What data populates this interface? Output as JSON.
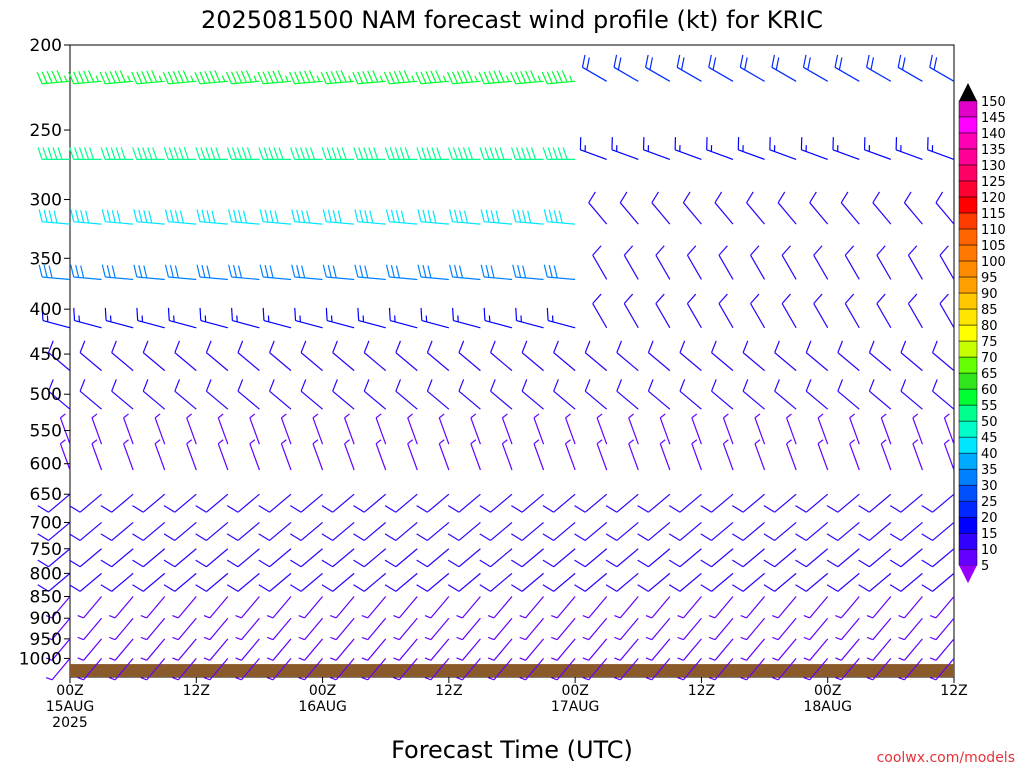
{
  "chart_data": {
    "type": "wind_barb_time_height",
    "title": "2025081500 NAM forecast wind profile (kt) for KRIC",
    "xlabel": "Forecast Time (UTC)",
    "ylabel": "",
    "credit": "coolwx.com/models",
    "units": "kt",
    "y_axis": {
      "reversed": true,
      "ylim": [
        200,
        1050
      ],
      "ticks": [
        200,
        250,
        300,
        350,
        400,
        450,
        500,
        550,
        600,
        650,
        700,
        750,
        800,
        850,
        900,
        950,
        1000
      ]
    },
    "x_axis": {
      "xlim_hours": [
        0,
        84
      ],
      "ticks": [
        {
          "hour": 0,
          "line1": "00Z",
          "line2": "15AUG",
          "line3": "2025"
        },
        {
          "hour": 12,
          "line1": "12Z",
          "line2": "",
          "line3": ""
        },
        {
          "hour": 24,
          "line1": "00Z",
          "line2": "16AUG",
          "line3": ""
        },
        {
          "hour": 36,
          "line1": "12Z",
          "line2": "",
          "line3": ""
        },
        {
          "hour": 48,
          "line1": "00Z",
          "line2": "17AUG",
          "line3": ""
        },
        {
          "hour": 60,
          "line1": "12Z",
          "line2": "",
          "line3": ""
        },
        {
          "hour": 72,
          "line1": "00Z",
          "line2": "18AUG",
          "line3": ""
        },
        {
          "hour": 84,
          "line1": "12Z",
          "line2": "",
          "line3": ""
        }
      ]
    },
    "colorbar": {
      "levels": [
        150,
        145,
        140,
        135,
        130,
        125,
        120,
        115,
        110,
        105,
        100,
        95,
        90,
        85,
        80,
        75,
        70,
        65,
        60,
        55,
        50,
        45,
        40,
        35,
        30,
        25,
        20,
        15,
        10,
        5
      ],
      "colors": [
        "#e000c8",
        "#ff00ff",
        "#ff00b4",
        "#ff0096",
        "#ff0064",
        "#ff0032",
        "#ff0000",
        "#ff3c00",
        "#ff6400",
        "#ff7800",
        "#ff8c00",
        "#ffa000",
        "#ffc800",
        "#ffe600",
        "#ffff00",
        "#c8ff00",
        "#64ff00",
        "#32e61e",
        "#00ff32",
        "#00ff8c",
        "#00ffc8",
        "#00e6ff",
        "#00aaff",
        "#0080ff",
        "#0050ff",
        "#0028ff",
        "#0000ff",
        "#3200ff",
        "#6400ff",
        "#9600ff"
      ],
      "top_arrow": "#000000",
      "bottom_arrow": "#9600ff"
    },
    "terrain": {
      "surface_pressure": 1015,
      "color": "#8b5a2b"
    },
    "barb_times_hours": [
      0,
      3,
      6,
      9,
      12,
      15,
      18,
      21,
      24,
      27,
      30,
      33,
      36,
      39,
      42,
      45,
      48,
      51,
      54,
      57,
      60,
      63,
      66,
      69,
      72,
      75,
      78,
      81,
      84
    ],
    "wind_regimes": [
      {
        "p_max": 230,
        "hours_end": 48,
        "dir_deg": 265,
        "speed_kt": 55
      },
      {
        "p_max": 230,
        "hours_end": 84,
        "dir_deg": 300,
        "speed_kt": 20
      },
      {
        "p_max": 300,
        "hours_end": 48,
        "dir_deg": 270,
        "speed_kt": 50
      },
      {
        "p_max": 300,
        "hours_end": 84,
        "dir_deg": 290,
        "speed_kt": 15
      },
      {
        "p_max": 340,
        "hours_end": 48,
        "dir_deg": 275,
        "speed_kt": 40
      },
      {
        "p_max": 340,
        "hours_end": 84,
        "dir_deg": 320,
        "speed_kt": 12
      },
      {
        "p_max": 400,
        "hours_end": 48,
        "dir_deg": 275,
        "speed_kt": 30
      },
      {
        "p_max": 400,
        "hours_end": 84,
        "dir_deg": 330,
        "speed_kt": 12
      },
      {
        "p_max": 450,
        "hours_end": 48,
        "dir_deg": 285,
        "speed_kt": 18
      },
      {
        "p_max": 450,
        "hours_end": 84,
        "dir_deg": 330,
        "speed_kt": 12
      },
      {
        "p_max": 520,
        "hours_end": 84,
        "dir_deg": 310,
        "speed_kt": 10
      },
      {
        "p_max": 640,
        "hours_end": 84,
        "dir_deg": 340,
        "speed_kt": 8
      },
      {
        "p_max": 820,
        "hours_end": 84,
        "dir_deg": 230,
        "speed_kt": 10
      },
      {
        "p_max": 1000,
        "hours_end": 84,
        "dir_deg": 220,
        "speed_kt": 8
      }
    ],
    "barb_levels": [
      220,
      270,
      320,
      370,
      420,
      470,
      520,
      570,
      610,
      650,
      700,
      750,
      800,
      850,
      900,
      950,
      1000
    ]
  }
}
